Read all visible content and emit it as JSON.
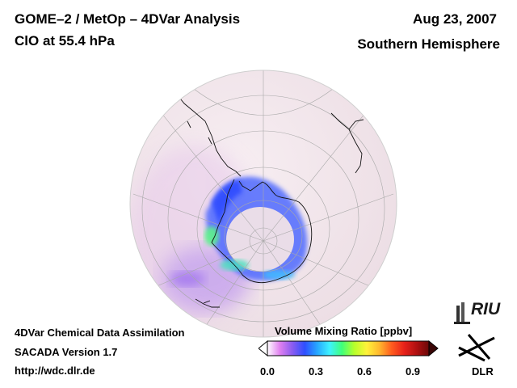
{
  "header": {
    "title": "GOME–2 / MetOp – 4DVar Analysis",
    "subtitle": "ClO at 55.4 hPa",
    "date": "Aug 23, 2007",
    "hemisphere": "Southern Hemisphere"
  },
  "footer": {
    "line1": "4DVar Chemical Data Assimilation",
    "line2": "SACADA Version 1.7",
    "line3": "http://wdc.dlr.de"
  },
  "colorbar": {
    "title": "Volume Mixing Ratio [ppbv]",
    "ticks": [
      "0.0",
      "0.3",
      "0.6",
      "0.9"
    ],
    "min": 0.0,
    "max": 1.0,
    "colors": [
      "#ffffff",
      "#e080f0",
      "#8a5cf0",
      "#2f4fff",
      "#27a6ff",
      "#3ef2ff",
      "#3fff7a",
      "#b8ff2a",
      "#fff23a",
      "#ffb82e",
      "#ff5c1e",
      "#e8221a",
      "#b01010",
      "#6b0808"
    ]
  },
  "logos": {
    "riu": "RIU",
    "dlr": "DLR"
  },
  "icons": {
    "riu": "riu-building-icon",
    "dlr": "dlr-logo-icon"
  }
}
